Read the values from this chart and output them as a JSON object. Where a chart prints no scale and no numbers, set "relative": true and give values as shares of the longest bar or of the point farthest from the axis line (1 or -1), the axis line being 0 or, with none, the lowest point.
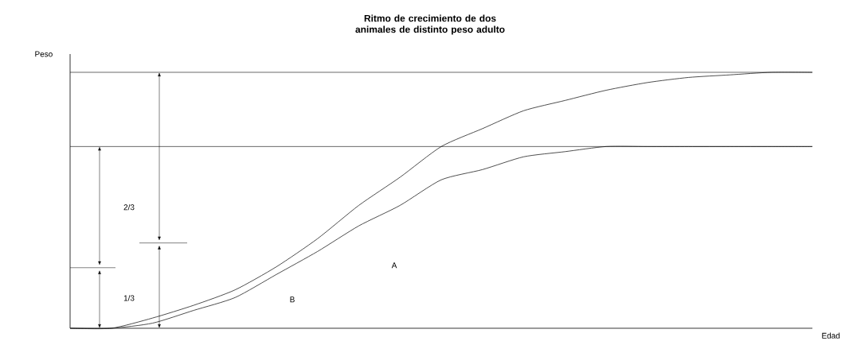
{
  "chart_data": {
    "type": "line",
    "title": "Ritmo de crecimiento de dos animales de distinto peso adulto",
    "xlabel": "Edad",
    "ylabel": "Peso",
    "relative": true,
    "marker": "none",
    "line_style": "solid",
    "categories": [
      null,
      null,
      null,
      null,
      null,
      null,
      null,
      null,
      null,
      null,
      null,
      null,
      null,
      null,
      null,
      null,
      null,
      null,
      null
    ],
    "series": [
      {
        "color": "#222222",
        "values": [
          0,
          0,
          0.04,
          0.09,
          0.15,
          0.24,
          0.35,
          0.48,
          0.59,
          0.71,
          0.78,
          0.85,
          0.89,
          0.93,
          0.96,
          0.98,
          0.99,
          1,
          1
        ]
      },
      {
        "color": "#222222",
        "values": [
          0,
          0,
          0.02,
          0.07,
          0.12,
          0.21,
          0.3,
          0.4,
          0.48,
          0.58,
          0.62,
          0.67,
          0.69,
          0.71,
          0.71,
          0.71,
          0.71,
          0.71,
          0.71
        ]
      }
    ],
    "ref_lines": [
      {
        "axis": "y",
        "value": 1
      },
      {
        "axis": "y",
        "value": 0.71
      }
    ],
    "annotations": [
      "2/3",
      "1/3",
      "A",
      "B"
    ]
  }
}
